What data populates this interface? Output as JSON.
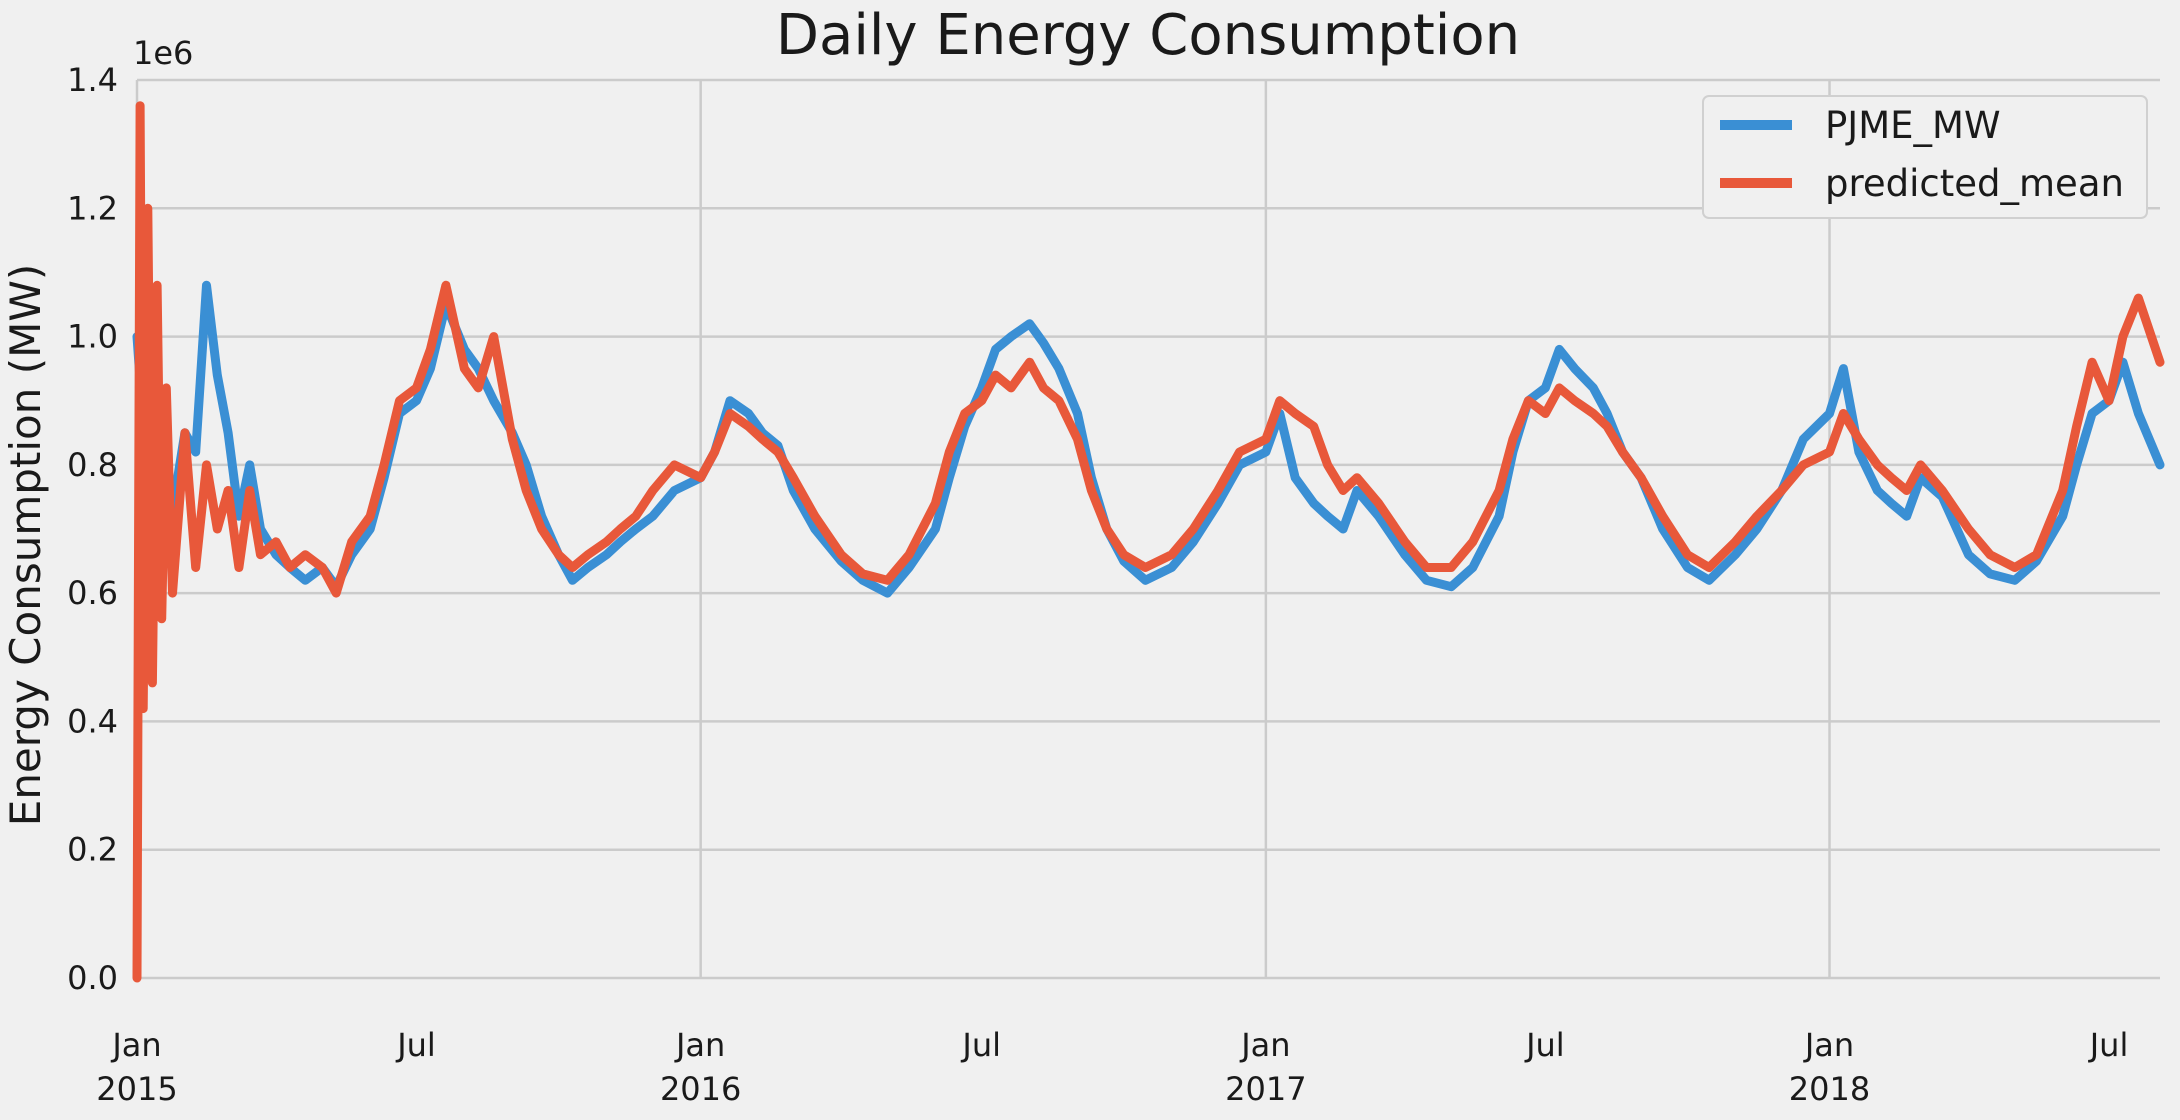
{
  "chart_data": {
    "type": "line",
    "title": "Daily Energy Consumption",
    "xlabel": "",
    "ylabel": "Energy Consumption (MW)",
    "y_offset_label": "1e6",
    "ylim": [
      0,
      1400000
    ],
    "xlim": [
      "2015-01-01",
      "2018-08-03"
    ],
    "y_ticks": [
      0,
      200000,
      400000,
      600000,
      800000,
      1000000,
      1200000,
      1400000
    ],
    "y_tick_labels": [
      "0.0",
      "0.2",
      "0.4",
      "0.6",
      "0.8",
      "1.0",
      "1.2",
      "1.4"
    ],
    "x_ticks": [
      {
        "date": "2015-01-01",
        "month": "Jan",
        "year": "2015"
      },
      {
        "date": "2015-07-01",
        "month": "Jul",
        "year": ""
      },
      {
        "date": "2016-01-01",
        "month": "Jan",
        "year": "2016"
      },
      {
        "date": "2016-07-01",
        "month": "Jul",
        "year": ""
      },
      {
        "date": "2017-01-01",
        "month": "Jan",
        "year": "2017"
      },
      {
        "date": "2017-07-01",
        "month": "Jul",
        "year": ""
      },
      {
        "date": "2018-01-01",
        "month": "Jan",
        "year": "2018"
      },
      {
        "date": "2018-07-01",
        "month": "Jul",
        "year": ""
      }
    ],
    "grid": true,
    "legend_position": "top-right",
    "series": [
      {
        "name": "PJME_MW",
        "color": "#3a8fd4",
        "points": [
          [
            "2015-01-01",
            1000000
          ],
          [
            "2015-01-08",
            760000
          ],
          [
            "2015-01-15",
            880000
          ],
          [
            "2015-01-22",
            700000
          ],
          [
            "2015-02-01",
            850000
          ],
          [
            "2015-02-08",
            820000
          ],
          [
            "2015-02-15",
            1080000
          ],
          [
            "2015-02-22",
            940000
          ],
          [
            "2015-03-01",
            850000
          ],
          [
            "2015-03-08",
            720000
          ],
          [
            "2015-03-15",
            800000
          ],
          [
            "2015-03-22",
            700000
          ],
          [
            "2015-04-01",
            660000
          ],
          [
            "2015-04-10",
            640000
          ],
          [
            "2015-04-20",
            620000
          ],
          [
            "2015-05-01",
            640000
          ],
          [
            "2015-05-10",
            610000
          ],
          [
            "2015-05-20",
            660000
          ],
          [
            "2015-06-01",
            700000
          ],
          [
            "2015-06-10",
            780000
          ],
          [
            "2015-06-20",
            880000
          ],
          [
            "2015-07-01",
            900000
          ],
          [
            "2015-07-10",
            950000
          ],
          [
            "2015-07-20",
            1050000
          ],
          [
            "2015-08-01",
            980000
          ],
          [
            "2015-08-10",
            950000
          ],
          [
            "2015-08-20",
            900000
          ],
          [
            "2015-09-01",
            850000
          ],
          [
            "2015-09-10",
            800000
          ],
          [
            "2015-09-20",
            720000
          ],
          [
            "2015-10-01",
            660000
          ],
          [
            "2015-10-10",
            620000
          ],
          [
            "2015-10-20",
            640000
          ],
          [
            "2015-11-01",
            660000
          ],
          [
            "2015-11-10",
            680000
          ],
          [
            "2015-11-20",
            700000
          ],
          [
            "2015-12-01",
            720000
          ],
          [
            "2015-12-15",
            760000
          ],
          [
            "2016-01-01",
            780000
          ],
          [
            "2016-01-10",
            820000
          ],
          [
            "2016-01-20",
            900000
          ],
          [
            "2016-02-01",
            880000
          ],
          [
            "2016-02-10",
            850000
          ],
          [
            "2016-02-20",
            830000
          ],
          [
            "2016-03-01",
            760000
          ],
          [
            "2016-03-15",
            700000
          ],
          [
            "2016-04-01",
            650000
          ],
          [
            "2016-04-15",
            620000
          ],
          [
            "2016-05-01",
            600000
          ],
          [
            "2016-05-15",
            640000
          ],
          [
            "2016-06-01",
            700000
          ],
          [
            "2016-06-10",
            780000
          ],
          [
            "2016-06-20",
            860000
          ],
          [
            "2016-07-01",
            920000
          ],
          [
            "2016-07-10",
            980000
          ],
          [
            "2016-07-20",
            1000000
          ],
          [
            "2016-08-01",
            1020000
          ],
          [
            "2016-08-10",
            990000
          ],
          [
            "2016-08-20",
            950000
          ],
          [
            "2016-09-01",
            880000
          ],
          [
            "2016-09-10",
            780000
          ],
          [
            "2016-09-20",
            700000
          ],
          [
            "2016-10-01",
            650000
          ],
          [
            "2016-10-15",
            620000
          ],
          [
            "2016-11-01",
            640000
          ],
          [
            "2016-11-15",
            680000
          ],
          [
            "2016-12-01",
            740000
          ],
          [
            "2016-12-15",
            800000
          ],
          [
            "2017-01-01",
            820000
          ],
          [
            "2017-01-10",
            880000
          ],
          [
            "2017-01-20",
            780000
          ],
          [
            "2017-02-01",
            740000
          ],
          [
            "2017-02-10",
            720000
          ],
          [
            "2017-02-20",
            700000
          ],
          [
            "2017-03-01",
            760000
          ],
          [
            "2017-03-15",
            720000
          ],
          [
            "2017-04-01",
            660000
          ],
          [
            "2017-04-15",
            620000
          ],
          [
            "2017-05-01",
            610000
          ],
          [
            "2017-05-15",
            640000
          ],
          [
            "2017-06-01",
            720000
          ],
          [
            "2017-06-10",
            820000
          ],
          [
            "2017-06-20",
            900000
          ],
          [
            "2017-07-01",
            920000
          ],
          [
            "2017-07-10",
            980000
          ],
          [
            "2017-07-20",
            950000
          ],
          [
            "2017-08-01",
            920000
          ],
          [
            "2017-08-10",
            880000
          ],
          [
            "2017-08-20",
            820000
          ],
          [
            "2017-09-01",
            780000
          ],
          [
            "2017-09-15",
            700000
          ],
          [
            "2017-10-01",
            640000
          ],
          [
            "2017-10-15",
            620000
          ],
          [
            "2017-11-01",
            660000
          ],
          [
            "2017-11-15",
            700000
          ],
          [
            "2017-12-01",
            760000
          ],
          [
            "2017-12-15",
            840000
          ],
          [
            "2018-01-01",
            880000
          ],
          [
            "2018-01-10",
            950000
          ],
          [
            "2018-01-20",
            820000
          ],
          [
            "2018-02-01",
            760000
          ],
          [
            "2018-02-10",
            740000
          ],
          [
            "2018-02-20",
            720000
          ],
          [
            "2018-03-01",
            780000
          ],
          [
            "2018-03-15",
            750000
          ],
          [
            "2018-04-01",
            660000
          ],
          [
            "2018-04-15",
            630000
          ],
          [
            "2018-05-01",
            620000
          ],
          [
            "2018-05-15",
            650000
          ],
          [
            "2018-06-01",
            720000
          ],
          [
            "2018-06-10",
            800000
          ],
          [
            "2018-06-20",
            880000
          ],
          [
            "2018-07-01",
            900000
          ],
          [
            "2018-07-10",
            960000
          ],
          [
            "2018-07-20",
            880000
          ],
          [
            "2018-08-03",
            800000
          ]
        ]
      },
      {
        "name": "predicted_mean",
        "color": "#e8583a",
        "points": [
          [
            "2015-01-01",
            0
          ],
          [
            "2015-01-03",
            1360000
          ],
          [
            "2015-01-05",
            420000
          ],
          [
            "2015-01-08",
            1200000
          ],
          [
            "2015-01-11",
            460000
          ],
          [
            "2015-01-14",
            1080000
          ],
          [
            "2015-01-17",
            560000
          ],
          [
            "2015-01-20",
            920000
          ],
          [
            "2015-01-24",
            600000
          ],
          [
            "2015-02-01",
            850000
          ],
          [
            "2015-02-08",
            640000
          ],
          [
            "2015-02-15",
            800000
          ],
          [
            "2015-02-22",
            700000
          ],
          [
            "2015-03-01",
            760000
          ],
          [
            "2015-03-08",
            640000
          ],
          [
            "2015-03-15",
            760000
          ],
          [
            "2015-03-22",
            660000
          ],
          [
            "2015-04-01",
            680000
          ],
          [
            "2015-04-10",
            640000
          ],
          [
            "2015-04-20",
            660000
          ],
          [
            "2015-05-01",
            640000
          ],
          [
            "2015-05-10",
            600000
          ],
          [
            "2015-05-20",
            680000
          ],
          [
            "2015-06-01",
            720000
          ],
          [
            "2015-06-10",
            800000
          ],
          [
            "2015-06-20",
            900000
          ],
          [
            "2015-07-01",
            920000
          ],
          [
            "2015-07-10",
            980000
          ],
          [
            "2015-07-20",
            1080000
          ],
          [
            "2015-08-01",
            950000
          ],
          [
            "2015-08-10",
            920000
          ],
          [
            "2015-08-20",
            1000000
          ],
          [
            "2015-09-01",
            840000
          ],
          [
            "2015-09-10",
            760000
          ],
          [
            "2015-09-20",
            700000
          ],
          [
            "2015-10-01",
            660000
          ],
          [
            "2015-10-10",
            640000
          ],
          [
            "2015-10-20",
            660000
          ],
          [
            "2015-11-01",
            680000
          ],
          [
            "2015-11-10",
            700000
          ],
          [
            "2015-11-20",
            720000
          ],
          [
            "2015-12-01",
            760000
          ],
          [
            "2015-12-15",
            800000
          ],
          [
            "2016-01-01",
            780000
          ],
          [
            "2016-01-10",
            820000
          ],
          [
            "2016-01-20",
            880000
          ],
          [
            "2016-02-01",
            860000
          ],
          [
            "2016-02-10",
            840000
          ],
          [
            "2016-02-20",
            820000
          ],
          [
            "2016-03-01",
            780000
          ],
          [
            "2016-03-15",
            720000
          ],
          [
            "2016-04-01",
            660000
          ],
          [
            "2016-04-15",
            630000
          ],
          [
            "2016-05-01",
            620000
          ],
          [
            "2016-05-15",
            660000
          ],
          [
            "2016-06-01",
            740000
          ],
          [
            "2016-06-10",
            820000
          ],
          [
            "2016-06-20",
            880000
          ],
          [
            "2016-07-01",
            900000
          ],
          [
            "2016-07-10",
            940000
          ],
          [
            "2016-07-20",
            920000
          ],
          [
            "2016-08-01",
            960000
          ],
          [
            "2016-08-10",
            920000
          ],
          [
            "2016-08-20",
            900000
          ],
          [
            "2016-09-01",
            840000
          ],
          [
            "2016-09-10",
            760000
          ],
          [
            "2016-09-20",
            700000
          ],
          [
            "2016-10-01",
            660000
          ],
          [
            "2016-10-15",
            640000
          ],
          [
            "2016-11-01",
            660000
          ],
          [
            "2016-11-15",
            700000
          ],
          [
            "2016-12-01",
            760000
          ],
          [
            "2016-12-15",
            820000
          ],
          [
            "2017-01-01",
            840000
          ],
          [
            "2017-01-10",
            900000
          ],
          [
            "2017-01-20",
            880000
          ],
          [
            "2017-02-01",
            860000
          ],
          [
            "2017-02-10",
            800000
          ],
          [
            "2017-02-20",
            760000
          ],
          [
            "2017-03-01",
            780000
          ],
          [
            "2017-03-15",
            740000
          ],
          [
            "2017-04-01",
            680000
          ],
          [
            "2017-04-15",
            640000
          ],
          [
            "2017-05-01",
            640000
          ],
          [
            "2017-05-15",
            680000
          ],
          [
            "2017-06-01",
            760000
          ],
          [
            "2017-06-10",
            840000
          ],
          [
            "2017-06-20",
            900000
          ],
          [
            "2017-07-01",
            880000
          ],
          [
            "2017-07-10",
            920000
          ],
          [
            "2017-07-20",
            900000
          ],
          [
            "2017-08-01",
            880000
          ],
          [
            "2017-08-10",
            860000
          ],
          [
            "2017-08-20",
            820000
          ],
          [
            "2017-09-01",
            780000
          ],
          [
            "2017-09-15",
            720000
          ],
          [
            "2017-10-01",
            660000
          ],
          [
            "2017-10-15",
            640000
          ],
          [
            "2017-11-01",
            680000
          ],
          [
            "2017-11-15",
            720000
          ],
          [
            "2017-12-01",
            760000
          ],
          [
            "2017-12-15",
            800000
          ],
          [
            "2018-01-01",
            820000
          ],
          [
            "2018-01-10",
            880000
          ],
          [
            "2018-01-20",
            840000
          ],
          [
            "2018-02-01",
            800000
          ],
          [
            "2018-02-10",
            780000
          ],
          [
            "2018-02-20",
            760000
          ],
          [
            "2018-03-01",
            800000
          ],
          [
            "2018-03-15",
            760000
          ],
          [
            "2018-04-01",
            700000
          ],
          [
            "2018-04-15",
            660000
          ],
          [
            "2018-05-01",
            640000
          ],
          [
            "2018-05-15",
            660000
          ],
          [
            "2018-06-01",
            760000
          ],
          [
            "2018-06-10",
            860000
          ],
          [
            "2018-06-20",
            960000
          ],
          [
            "2018-07-01",
            900000
          ],
          [
            "2018-07-10",
            1000000
          ],
          [
            "2018-07-20",
            1060000
          ],
          [
            "2018-08-03",
            960000
          ]
        ]
      }
    ]
  }
}
